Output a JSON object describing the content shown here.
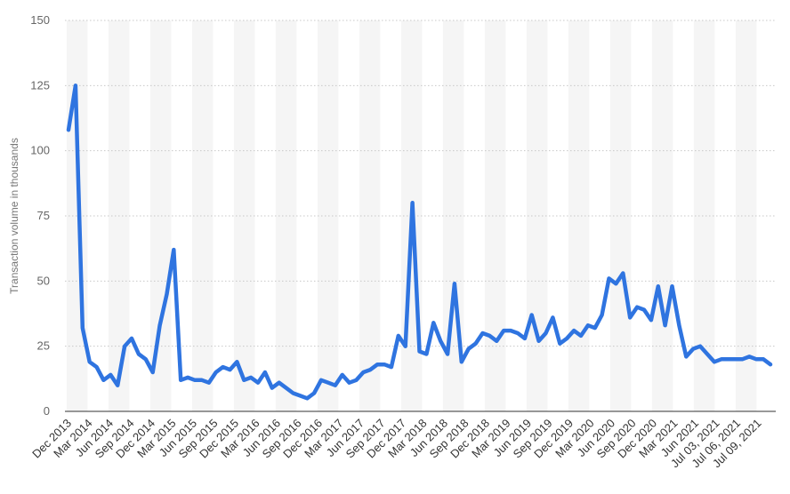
{
  "chart_data": {
    "type": "line",
    "title": "",
    "xlabel": "",
    "ylabel": "Transaction volume in thousands",
    "ylim": [
      0,
      150
    ],
    "yticks": [
      0,
      25,
      50,
      75,
      100,
      125,
      150
    ],
    "grid": true,
    "color": "#2f74e0",
    "x_tick_labels": [
      "Dec 2013",
      "Mar 2014",
      "Jun 2014",
      "Sep 2014",
      "Dec 2014",
      "Mar 2015",
      "Jun 2015",
      "Sep 2015",
      "Dec 2015",
      "Mar 2016",
      "Jun 2016",
      "Sep 2016",
      "Dec 2016",
      "Mar 2017",
      "Jun 2017",
      "Sep 2017",
      "Dec 2017",
      "Mar 2018",
      "Jun 2018",
      "Sep 2018",
      "Dec 2018",
      "Mar 2019",
      "Jun 2019",
      "Sep 2019",
      "Dec 2019",
      "Mar 2020",
      "Jun 2020",
      "Sep 2020",
      "Dec 2020",
      "Mar 2021",
      "Jun 2021",
      "Jul 03, 2021",
      "Jul 06, 2021",
      "Jul 09, 2021"
    ],
    "series": [
      {
        "name": "",
        "values": [
          108,
          125,
          32,
          19,
          17,
          12,
          14,
          10,
          25,
          28,
          22,
          20,
          15,
          33,
          45,
          62,
          12,
          13,
          12,
          12,
          11,
          15,
          17,
          16,
          19,
          12,
          13,
          11,
          15,
          9,
          11,
          9,
          7,
          6,
          5,
          7,
          12,
          11,
          10,
          14,
          11,
          12,
          15,
          16,
          18,
          18,
          17,
          29,
          25,
          80,
          23,
          22,
          34,
          27,
          22,
          49,
          19,
          24,
          26,
          30,
          29,
          27,
          31,
          31,
          30,
          28,
          37,
          27,
          30,
          36,
          26,
          28,
          31,
          29,
          33,
          32,
          37,
          51,
          49,
          53,
          36,
          40,
          39,
          35,
          48,
          33,
          48,
          33,
          21,
          24,
          25,
          22,
          19,
          20,
          20,
          20,
          20,
          21,
          20,
          20,
          18
        ]
      }
    ]
  }
}
